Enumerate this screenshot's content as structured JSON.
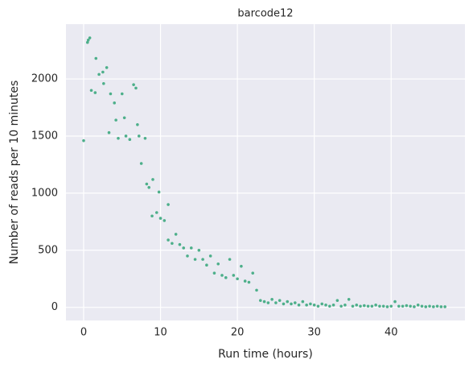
{
  "chart_data": {
    "type": "scatter",
    "title": "barcode12",
    "xlabel": "Run time (hours)",
    "ylabel": "Number of reads per 10 minutes",
    "color": "#4daf8a",
    "grid": true,
    "xlim": [
      -2.3,
      49.6
    ],
    "ylim": [
      -115,
      2480
    ],
    "xticks": [
      0,
      10,
      20,
      30,
      40
    ],
    "yticks": [
      0,
      500,
      1000,
      1500,
      2000
    ],
    "x": [
      0,
      0.5,
      1,
      1.5,
      2,
      2.5,
      3,
      3.5,
      4,
      4.5,
      5,
      5.5,
      6,
      6.5,
      7,
      7.5,
      8,
      8.5,
      9,
      9.5,
      10,
      10.5,
      11,
      11.5,
      12,
      12.5,
      13,
      13.5,
      14,
      14.5,
      15,
      15.5,
      16,
      16.5,
      17,
      17.5,
      18,
      18.5,
      19,
      19.5,
      20,
      20.5,
      21,
      21.5,
      22,
      22.5,
      23,
      23.5,
      24,
      24.5,
      25,
      25.5,
      26,
      26.5,
      27,
      27.5,
      28,
      28.5,
      29,
      29.5,
      30,
      30.5,
      31,
      31.5,
      32,
      32.5,
      33,
      33.5,
      34,
      34.5,
      35,
      35.5,
      36,
      36.5,
      37,
      37.5,
      38,
      38.5,
      39,
      39.5,
      40,
      40.5,
      41,
      41.5,
      42,
      42.5,
      43,
      43.5,
      44,
      44.5,
      45,
      45.5,
      46,
      46.5,
      47,
      0.6,
      0.8,
      1.6,
      2.6,
      3.3,
      4.2,
      6.8,
      7.2,
      8.2,
      8.9,
      9.8,
      11,
      5.3
    ],
    "y": [
      1460,
      2320,
      1900,
      1880,
      2040,
      2060,
      2100,
      1870,
      1790,
      1480,
      1870,
      1500,
      1470,
      1950,
      1600,
      1260,
      1480,
      1050,
      1120,
      830,
      780,
      760,
      590,
      560,
      640,
      550,
      520,
      450,
      520,
      420,
      500,
      420,
      370,
      450,
      300,
      380,
      280,
      260,
      420,
      280,
      250,
      360,
      230,
      220,
      300,
      150,
      60,
      50,
      40,
      70,
      40,
      60,
      30,
      50,
      30,
      40,
      20,
      50,
      20,
      30,
      20,
      10,
      30,
      20,
      10,
      20,
      60,
      10,
      20,
      70,
      10,
      20,
      10,
      15,
      10,
      10,
      20,
      10,
      10,
      5,
      10,
      50,
      10,
      10,
      15,
      10,
      5,
      20,
      10,
      5,
      10,
      5,
      10,
      5,
      5,
      2340,
      2360,
      2180,
      1960,
      1530,
      1640,
      1920,
      1500,
      1080,
      800,
      1010,
      900,
      1660
    ]
  }
}
